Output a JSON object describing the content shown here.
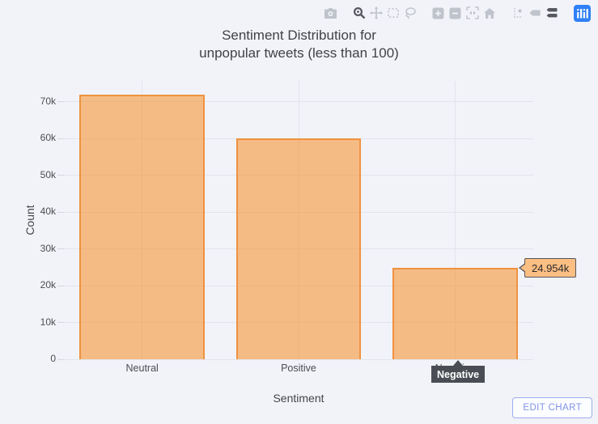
{
  "page": {
    "background": "#f2f3f8"
  },
  "modebar": {
    "icons": [
      {
        "name": "camera",
        "active": false,
        "group_start": false
      },
      {
        "name": "zoom",
        "active": true,
        "group_start": true
      },
      {
        "name": "pan",
        "active": false,
        "group_start": false
      },
      {
        "name": "box-select",
        "active": false,
        "group_start": false
      },
      {
        "name": "lasso-select",
        "active": false,
        "group_start": false
      },
      {
        "name": "zoom-in",
        "active": false,
        "group_start": true
      },
      {
        "name": "zoom-out",
        "active": false,
        "group_start": false
      },
      {
        "name": "autoscale",
        "active": false,
        "group_start": false
      },
      {
        "name": "reset-axes",
        "active": false,
        "group_start": false
      },
      {
        "name": "spikelines",
        "active": false,
        "group_start": true
      },
      {
        "name": "hover-closest",
        "active": false,
        "group_start": false
      },
      {
        "name": "hover-compare",
        "active": true,
        "group_start": false
      },
      {
        "name": "plotly-logo",
        "active": false,
        "group_start": true
      }
    ]
  },
  "chart_data": {
    "type": "bar",
    "title": "Sentiment Distribution for unpopular tweets (less than 100)",
    "title_lines": [
      "Sentiment Distribution for",
      "unpopular tweets (less than 100)"
    ],
    "xlabel": "Sentiment",
    "ylabel": "Count",
    "categories": [
      "Neutral",
      "Positive",
      "Negative"
    ],
    "values": [
      71900,
      60100,
      24954
    ],
    "ylim": [
      0,
      75700
    ],
    "yticks": [
      {
        "value": 0,
        "label": "0"
      },
      {
        "value": 10000,
        "label": "10k"
      },
      {
        "value": 20000,
        "label": "20k"
      },
      {
        "value": 30000,
        "label": "30k"
      },
      {
        "value": 40000,
        "label": "40k"
      },
      {
        "value": 50000,
        "label": "50k"
      },
      {
        "value": 60000,
        "label": "60k"
      },
      {
        "value": 70000,
        "label": "70k"
      }
    ],
    "grid": true,
    "bar_fill_color": "#f7b981",
    "bar_border_color": "#ef9240",
    "legend": "none"
  },
  "hover": {
    "value_label": "24.954k",
    "category_label": "Negative"
  },
  "edit_button": {
    "label": "EDIT CHART"
  },
  "colors": {
    "background": "#f2f3f8",
    "gridline": "#e2e4ed",
    "title_text": "#3f4247",
    "tick_text": "#4b4d52",
    "hover_bg": "#fbbe83",
    "hover_border": "#54565c",
    "axis_tooltip_bg": "#4a4e54",
    "edit_button_text": "#8093e6",
    "plotly_logo_blue": "#2f80f7",
    "modebar_active": "#55585e",
    "modebar_inactive": "#bfc3cb"
  }
}
